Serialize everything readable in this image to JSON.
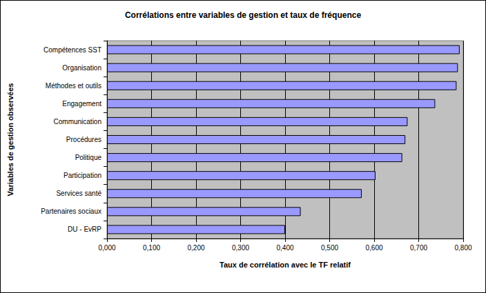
{
  "chart_data": {
    "type": "bar",
    "orientation": "horizontal",
    "title": "Corrélations entre variables de gestion et taux de fréquence",
    "x_label": "Taux de corrélation avec le TF relatif",
    "y_label": "Variables de gestion observées",
    "categories": [
      "Compétences SST",
      "Organisation",
      "Méthodes et outils",
      "Engagement",
      "Communication",
      "Procédures",
      "Politique",
      "Participation",
      "Services santé",
      "Partenaires sociaux",
      "DU - EvRP"
    ],
    "values": [
      0.792,
      0.788,
      0.785,
      0.737,
      0.675,
      0.67,
      0.663,
      0.603,
      0.572,
      0.435,
      0.4
    ],
    "color": "#9999ff",
    "xlim": [
      0,
      0.8
    ],
    "xticks": [
      {
        "value": 0,
        "label": "0,000"
      },
      {
        "value": 0.1,
        "label": "0,100"
      },
      {
        "value": 0.2,
        "label": "0,200"
      },
      {
        "value": 0.3,
        "label": "0,300"
      },
      {
        "value": 0.4,
        "label": "0,400"
      },
      {
        "value": 0.5,
        "label": "0,500"
      },
      {
        "value": 0.6,
        "label": "0,600"
      },
      {
        "value": 0.7,
        "label": "0,700"
      },
      {
        "value": 0.8,
        "label": "0,800"
      }
    ],
    "grid": true
  }
}
